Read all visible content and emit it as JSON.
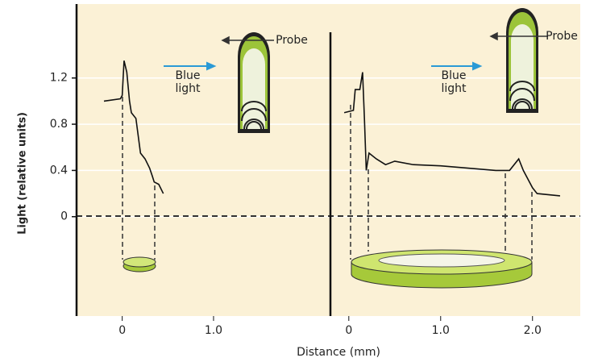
{
  "chart_data": [
    {
      "type": "line",
      "ylabel": "Light (relative units)",
      "x": [
        -0.2,
        -0.02,
        0,
        0.02,
        0.05,
        0.08,
        0.1,
        0.15,
        0.2,
        0.25,
        0.3,
        0.33,
        0.35,
        0.4,
        0.45
      ],
      "values": [
        1.0,
        1.02,
        1.05,
        1.35,
        1.25,
        1.0,
        0.9,
        0.85,
        0.55,
        0.5,
        0.42,
        0.35,
        0.3,
        0.28,
        0.2
      ],
      "color": "#111111",
      "xlim": [
        -0.5,
        2.28
      ],
      "ylim": [
        -0.86,
        1.84
      ],
      "xticks": [
        0,
        {
          "value": 1,
          "label": "1.0"
        }
      ],
      "yticks": [
        0,
        0.4,
        0.8,
        1.2
      ],
      "grid": true,
      "annotations": [
        "Blue light",
        "Probe"
      ]
    },
    {
      "type": "line",
      "xlabel": "Distance (mm)",
      "x": [
        -0.05,
        0.05,
        0.07,
        0.12,
        0.15,
        0.17,
        0.19,
        0.22,
        0.3,
        0.4,
        0.5,
        0.7,
        1.0,
        1.3,
        1.6,
        1.75,
        1.85,
        1.9,
        2.0,
        2.05,
        2.3
      ],
      "values": [
        0.9,
        0.92,
        1.1,
        1.1,
        1.25,
        0.85,
        0.4,
        0.55,
        0.5,
        0.45,
        0.48,
        0.45,
        0.44,
        0.42,
        0.4,
        0.4,
        0.5,
        0.4,
        0.25,
        0.2,
        0.18
      ],
      "color": "#111111",
      "xlim": [
        -0.2,
        2.52
      ],
      "ylim": [
        -0.86,
        1.84
      ],
      "xticks": [
        0,
        {
          "value": 1,
          "label": "1.0"
        },
        {
          "value": 2,
          "label": "2.0"
        }
      ],
      "grid": true,
      "annotations": [
        "Blue light",
        "Probe"
      ]
    }
  ]
}
